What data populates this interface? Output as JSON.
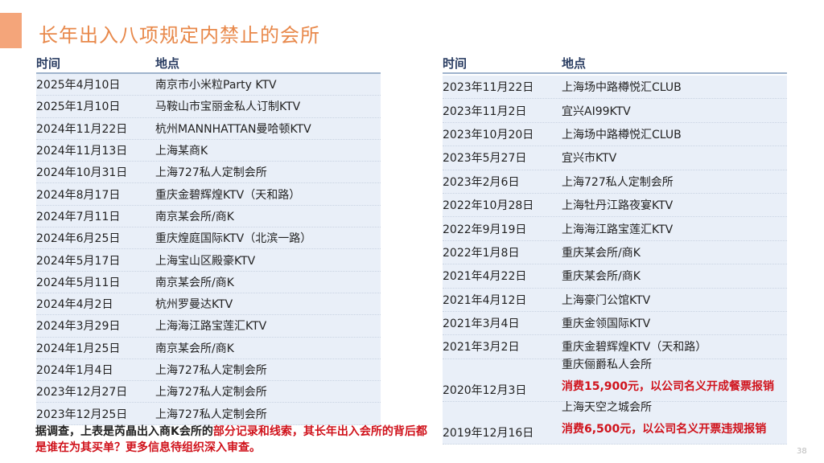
{
  "title": "长年出入八项规定内禁止的会所",
  "colors": {
    "accent": "#f4a57a",
    "title": "#e8884a",
    "header": "#2b3e63",
    "row_bg": "#e9eff8",
    "highlight": "#d0121b"
  },
  "left_table": {
    "headers": [
      "时间",
      "地点"
    ],
    "rows": [
      [
        "2025年4月10日",
        "南京市小米粒Party KTV"
      ],
      [
        "2025年1月10日",
        "马鞍山市宝丽金私人订制KTV"
      ],
      [
        "2024年11月22日",
        "杭州MANNHATTAN曼哈顿KTV"
      ],
      [
        "2024年11月13日",
        "上海某商K"
      ],
      [
        "2024年10月31日",
        "上海727私人定制会所"
      ],
      [
        "2024年8月17日",
        "重庆金碧辉煌KTV（天和路）"
      ],
      [
        "2024年7月11日",
        "南京某会所/商K"
      ],
      [
        "2024年6月25日",
        "重庆煌庭国际KTV（北滨一路）"
      ],
      [
        "2024年5月17日",
        "上海宝山区殿豪KTV"
      ],
      [
        "2024年5月11日",
        "南京某会所/商K"
      ],
      [
        "2024年4月2日",
        "杭州罗曼达KTV"
      ],
      [
        "2024年3月29日",
        "上海海江路宝莲汇KTV"
      ],
      [
        "2024年1月25日",
        "南京某会所/商K"
      ],
      [
        "2024年1月4日",
        "上海727私人定制会所"
      ],
      [
        "2023年12月27日",
        "上海727私人定制会所"
      ],
      [
        "2023年12月25日",
        "上海727私人定制会所"
      ]
    ]
  },
  "right_table": {
    "headers": [
      "时间",
      "地点"
    ],
    "rows": [
      [
        "2023年11月22日",
        "上海场中路樽悦汇CLUB"
      ],
      [
        "2023年11月2日",
        "宜兴AI99KTV"
      ],
      [
        "2023年10月20日",
        "上海场中路樽悦汇CLUB"
      ],
      [
        "2023年5月27日",
        "宜兴市KTV"
      ],
      [
        "2023年2月6日",
        "上海727私人定制会所"
      ],
      [
        "2022年10月28日",
        "上海牡丹江路夜宴KTV"
      ],
      [
        "2022年9月19日",
        "上海海江路宝莲汇KTV"
      ],
      [
        "2022年1月8日",
        "重庆某会所/商K"
      ],
      [
        "2021年4月22日",
        "重庆某会所/商K"
      ],
      [
        "2021年4月12日",
        "上海豪门公馆KTV"
      ],
      [
        "2021年3月4日",
        "重庆金领国际KTV"
      ],
      [
        "2021年3月2日",
        "重庆金碧辉煌KTV（天和路）"
      ]
    ],
    "detail_rows": [
      {
        "date": "2020年12月3日",
        "place": "重庆俪爵私人会所",
        "note": "消费15,900元，以公司名义开成餐票报销"
      },
      {
        "date": "2019年12月16日",
        "place": "上海天空之城会所",
        "note": "消费6,500元，以公司名义开票违规报销"
      }
    ]
  },
  "note": {
    "black": "据调查，上表是芮晶出入商K会所的",
    "red": "部分记录和线索，其长年出入会所的背后都是谁在为其买单？更多信息待组织深入审查。"
  },
  "page_number": "38"
}
